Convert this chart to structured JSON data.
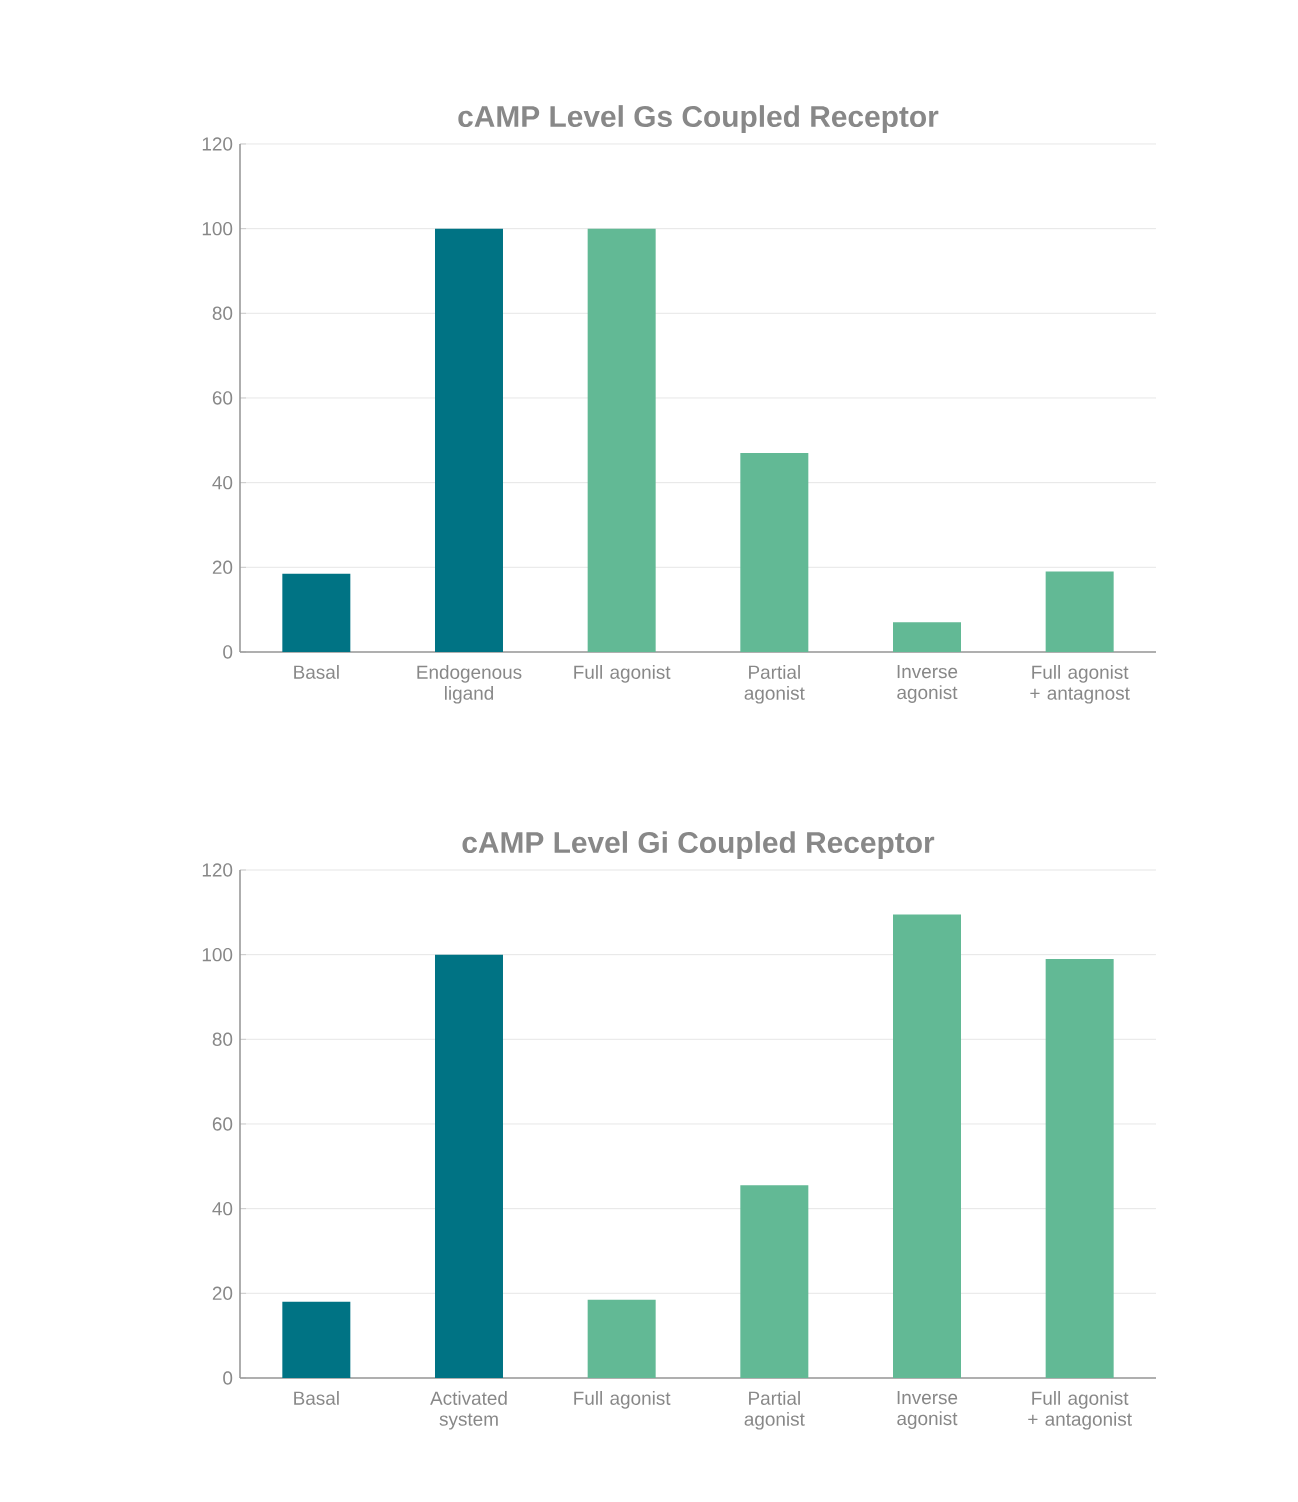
{
  "chart_data": [
    {
      "type": "bar",
      "title": "cAMP Level Gs Coupled Receptor",
      "categories": [
        "Basal",
        "Endogenous ligand",
        "Full agonist",
        "Partial agonist",
        "Inverse agonist",
        "Full  agonist + antagnost"
      ],
      "values": [
        18.5,
        100,
        100,
        47,
        7,
        19
      ],
      "colors": [
        "#007384",
        "#007384",
        "#62b995",
        "#62b995",
        "#62b995",
        "#62b995"
      ],
      "ylim": [
        0,
        120
      ],
      "yticks": [
        0,
        20,
        40,
        60,
        80,
        100,
        120
      ],
      "grid": "y"
    },
    {
      "type": "bar",
      "title": "cAMP Level Gi Coupled Receptor",
      "categories": [
        "Basal",
        "Activated system",
        "Full agonist",
        "Partial agonist",
        "Inverse agonist",
        "Full agonist + antagonist"
      ],
      "values": [
        18,
        100,
        18.5,
        45.5,
        109.5,
        99
      ],
      "colors": [
        "#007384",
        "#007384",
        "#62b995",
        "#62b995",
        "#62b995",
        "#62b995"
      ],
      "ylim": [
        0,
        120
      ],
      "yticks": [
        0,
        20,
        40,
        60,
        80,
        100,
        120
      ],
      "grid": "y"
    }
  ]
}
